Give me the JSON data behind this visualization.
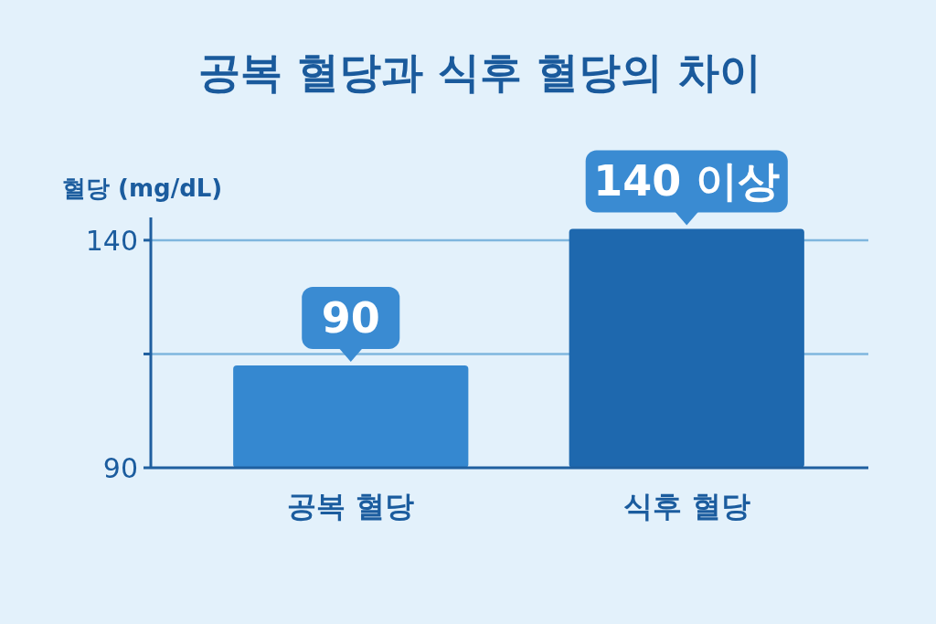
{
  "chart_data": {
    "type": "bar",
    "title": "공복 혈당과 식후 혈당의 차이",
    "ylabel": "혈당 (mg/dL)",
    "categories": [
      "공복 혈당",
      "식후 혈당"
    ],
    "values": [
      112.5,
      142.5
    ],
    "colors": [
      "#3588d0",
      "#1e68ae"
    ],
    "annotations": [
      {
        "text": "90",
        "x": "공복 혈당",
        "y": 112.5
      },
      {
        "text": "140 이상",
        "x": "식후 혈당",
        "y": 142.5
      }
    ],
    "ylim": [
      90,
      145
    ],
    "yticks": [
      90,
      {
        "value": 115,
        "label": null
      },
      140
    ],
    "grid": "y"
  }
}
